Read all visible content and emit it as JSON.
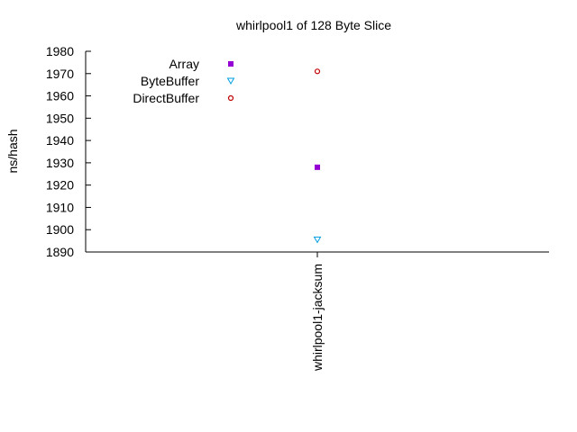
{
  "chart_data": {
    "type": "scatter",
    "title": "whirlpool1 of 128 Byte Slice",
    "xlabel": "",
    "ylabel": "ns/hash",
    "categories": [
      "whirlpool1-jacksum"
    ],
    "ylim": [
      1890,
      1980
    ],
    "yticks": [
      1890,
      1900,
      1910,
      1920,
      1930,
      1940,
      1950,
      1960,
      1970,
      1980
    ],
    "grid": false,
    "legend_position": "top-left",
    "series": [
      {
        "name": "Array",
        "marker": "filled-square",
        "color": "#9400d3",
        "values": [
          1928
        ]
      },
      {
        "name": "ByteBuffer",
        "marker": "open-triangle-down",
        "color": "#009ee0",
        "values": [
          1895.5
        ]
      },
      {
        "name": "DirectBuffer",
        "marker": "open-circle",
        "color": "#c00000",
        "values": [
          1971
        ]
      }
    ]
  }
}
